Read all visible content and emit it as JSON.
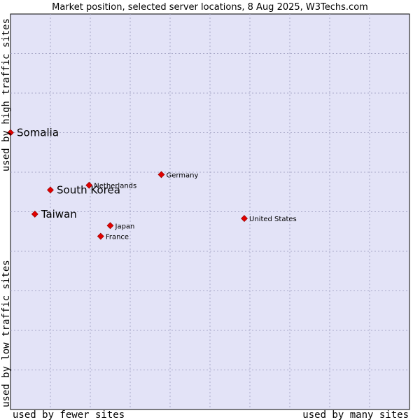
{
  "chart_data": {
    "type": "scatter",
    "title": "Market position, selected server locations, 8 Aug 2025, W3Techs.com",
    "xlabel_left": "used by fewer sites",
    "xlabel_right": "used by many sites",
    "ylabel_bottom": "used by low traffic sites",
    "ylabel_top": "used by high traffic sites",
    "xlim": [
      0,
      100
    ],
    "ylim": [
      0,
      100
    ],
    "grid": true,
    "points": [
      {
        "label": "Somalia",
        "x": 0.0,
        "y": 70.0,
        "emphasis": true
      },
      {
        "label": "South Korea",
        "x": 10.0,
        "y": 55.5,
        "emphasis": true
      },
      {
        "label": "Taiwan",
        "x": 6.1,
        "y": 49.4,
        "emphasis": true
      },
      {
        "label": "Netherlands",
        "x": 19.7,
        "y": 56.7,
        "emphasis": false
      },
      {
        "label": "Germany",
        "x": 37.8,
        "y": 59.4,
        "emphasis": false
      },
      {
        "label": "Japan",
        "x": 25.0,
        "y": 46.5,
        "emphasis": false
      },
      {
        "label": "France",
        "x": 22.6,
        "y": 43.8,
        "emphasis": false
      },
      {
        "label": "United States",
        "x": 58.6,
        "y": 48.3,
        "emphasis": false
      }
    ]
  },
  "colors": {
    "plot_bg": "#e3e3f7",
    "grid": "#a8a8c8",
    "marker": "#e10000",
    "marker_edge": "#8a0000"
  }
}
